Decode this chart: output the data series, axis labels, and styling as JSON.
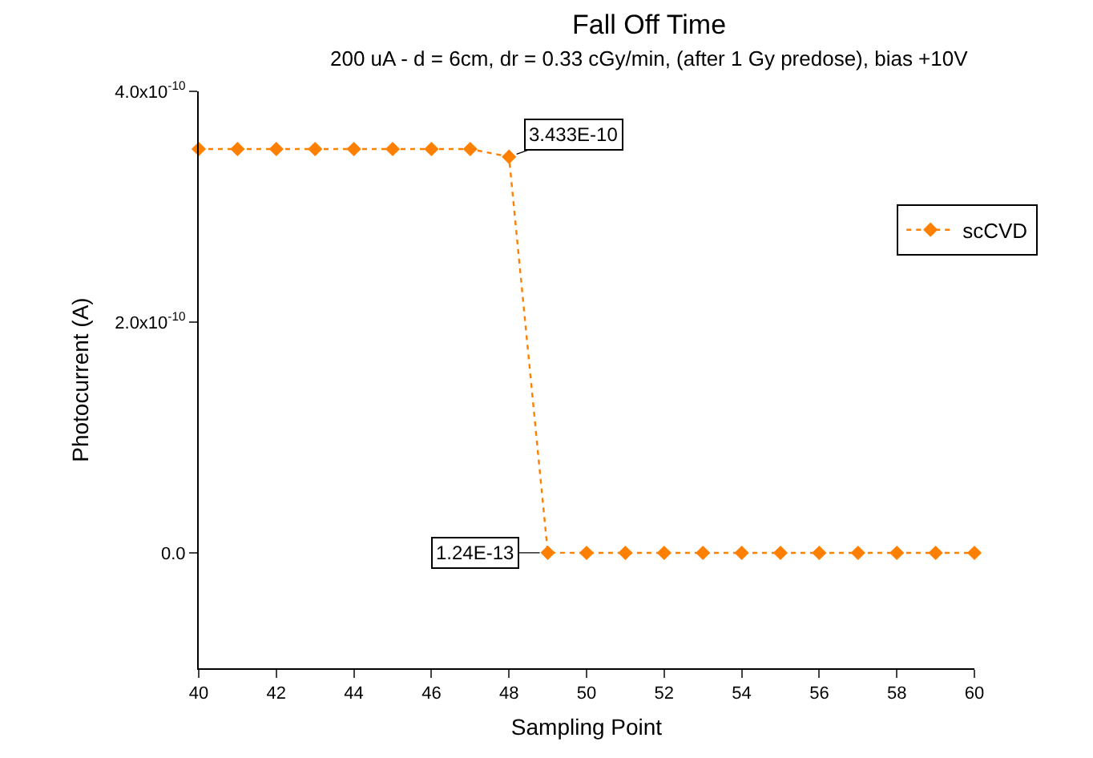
{
  "chart_data": {
    "type": "line",
    "title": "Fall Off Time",
    "subtitle": "200 uA - d = 6cm, dr = 0.33 cGy/min, (after 1 Gy predose), bias +10V",
    "xlabel": "Sampling Point",
    "ylabel": "Photocurrent (A)",
    "x": [
      40,
      41,
      42,
      43,
      44,
      45,
      46,
      47,
      48,
      49,
      50,
      51,
      52,
      53,
      54,
      55,
      56,
      57,
      58,
      59,
      60
    ],
    "series": [
      {
        "name": "scCVD",
        "color": "#ff8000",
        "values": [
          3.5e-10,
          3.5e-10,
          3.5e-10,
          3.5e-10,
          3.5e-10,
          3.5e-10,
          3.5e-10,
          3.5e-10,
          3.433e-10,
          1.24e-13,
          0,
          0,
          0,
          0,
          0,
          0,
          0,
          0,
          0,
          0,
          0
        ]
      }
    ],
    "xlim": [
      40,
      60
    ],
    "xticks": [
      40,
      42,
      44,
      46,
      48,
      50,
      52,
      54,
      56,
      58,
      60
    ],
    "ylim": [
      -1e-10,
      4e-10
    ],
    "yticks": [
      {
        "value": 0,
        "label": "0.0"
      },
      {
        "value": 2e-10,
        "label": "2.0x10$^{-10}$"
      },
      {
        "value": 4e-10,
        "label": "4.0x10$^{-10}$"
      }
    ],
    "annotations": [
      {
        "text": "3.433E-10",
        "x": 48,
        "y": 3.433e-10
      },
      {
        "text": "1.24E-13",
        "x": 49,
        "y": 1.24e-13
      }
    ],
    "grid": false,
    "legend": "right",
    "marker": "diamond",
    "line_style": "dotted"
  }
}
